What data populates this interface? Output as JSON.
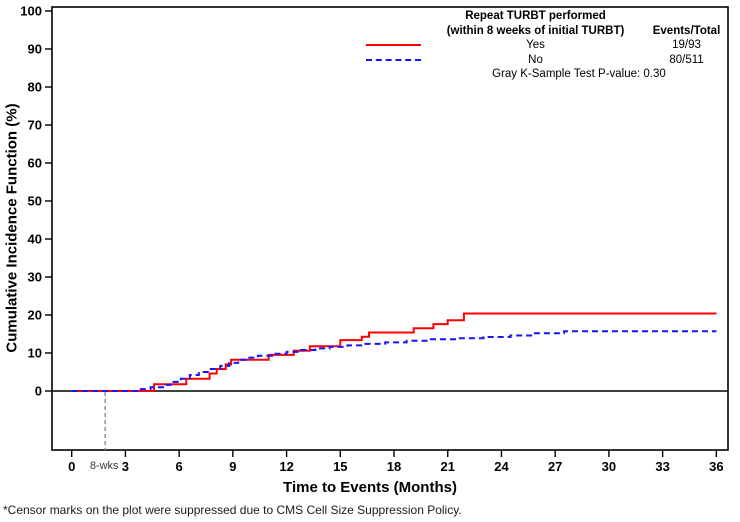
{
  "chart_data": {
    "type": "line",
    "subtype": "cumulative-incidence-step-plot",
    "xlabel": "Time to Events (Months)",
    "ylabel": "Cumulative Incidence Function (%)",
    "xlim": [
      0,
      36
    ],
    "ylim": [
      0,
      100
    ],
    "grid": false,
    "xticks": [
      0,
      3,
      6,
      9,
      12,
      15,
      18,
      21,
      24,
      27,
      30,
      33,
      36
    ],
    "yticks": [
      0,
      10,
      20,
      30,
      40,
      50,
      60,
      70,
      80,
      90,
      100
    ],
    "zero_reference_line": true,
    "eight_weeks_marker": {
      "label": "8-wks",
      "x_months": 1.87
    },
    "legend": {
      "position": "top-right-inside",
      "title_line1": "Repeat TURBT performed",
      "title_line2": "(within 8 weeks of initial TURBT)",
      "events_header": "Events/Total",
      "pvalue_text": "Gray K-Sample Test P-value: 0.30"
    },
    "series": [
      {
        "name": "Yes",
        "color": "#fe0000",
        "style": "solid",
        "events_total": "19/93",
        "end_month": 36,
        "points": [
          [
            0,
            0
          ],
          [
            4.6,
            1.8
          ],
          [
            6.4,
            3.2
          ],
          [
            7.7,
            4.6
          ],
          [
            8.1,
            5.8
          ],
          [
            8.6,
            7.0
          ],
          [
            8.9,
            8.2
          ],
          [
            11.0,
            9.5
          ],
          [
            12.4,
            10.6
          ],
          [
            13.3,
            11.8
          ],
          [
            15.0,
            13.4
          ],
          [
            16.2,
            14.3
          ],
          [
            16.6,
            15.4
          ],
          [
            19.1,
            16.5
          ],
          [
            20.2,
            17.6
          ],
          [
            21.0,
            18.6
          ],
          [
            21.9,
            20.4
          ]
        ]
      },
      {
        "name": "No",
        "color": "#1414ff",
        "style": "dashed",
        "events_total": "80/511",
        "end_month": 36,
        "points": [
          [
            0,
            0
          ],
          [
            3.7,
            0.5
          ],
          [
            4.4,
            1.0
          ],
          [
            5.1,
            1.6
          ],
          [
            5.6,
            2.4
          ],
          [
            6.1,
            3.2
          ],
          [
            6.6,
            4.2
          ],
          [
            7.1,
            5.0
          ],
          [
            7.7,
            5.8
          ],
          [
            8.3,
            6.6
          ],
          [
            8.8,
            7.4
          ],
          [
            9.3,
            8.2
          ],
          [
            9.8,
            8.8
          ],
          [
            10.4,
            9.3
          ],
          [
            11.2,
            9.8
          ],
          [
            12.0,
            10.3
          ],
          [
            12.8,
            10.8
          ],
          [
            13.6,
            11.2
          ],
          [
            14.4,
            11.6
          ],
          [
            15.4,
            12.0
          ],
          [
            16.4,
            12.4
          ],
          [
            17.5,
            12.8
          ],
          [
            18.7,
            13.2
          ],
          [
            20.0,
            13.6
          ],
          [
            21.5,
            13.9
          ],
          [
            23.0,
            14.2
          ],
          [
            24.5,
            14.6
          ],
          [
            25.8,
            15.2
          ],
          [
            27.5,
            15.7
          ]
        ]
      }
    ],
    "footnote": "*Censor marks on the plot were suppressed due to CMS Cell Size Suppression Policy."
  }
}
